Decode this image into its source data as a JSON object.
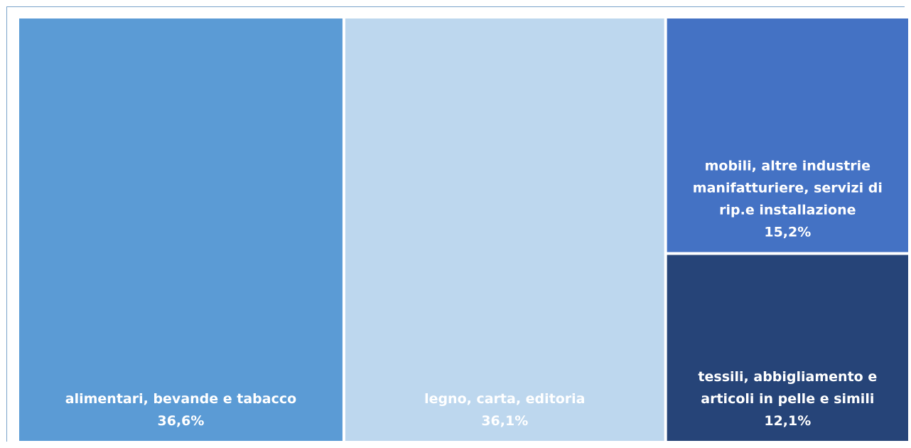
{
  "chart_data": {
    "type": "treemap",
    "items": [
      {
        "label": [
          "alimentari, bevande e tabacco"
        ],
        "value_label": "36,6%",
        "value": 36.6,
        "color": "#5b9bd5",
        "text_color": "#ffffff"
      },
      {
        "label": [
          "legno, carta, editoria"
        ],
        "value_label": "36,1%",
        "value": 36.1,
        "color": "#bdd7ee",
        "text_color": "#ffffff"
      },
      {
        "label": [
          "mobili, altre industrie",
          "manifatturiere, servizi di",
          "rip.e installazione"
        ],
        "value_label": "15,2%",
        "value": 15.2,
        "color": "#4472c4",
        "text_color": "#ffffff"
      },
      {
        "label": [
          "tessili, abbigliamento e",
          "articoli in pelle e simili"
        ],
        "value_label": "12,1%",
        "value": 12.1,
        "color": "#264478",
        "text_color": "#ffffff"
      }
    ]
  }
}
